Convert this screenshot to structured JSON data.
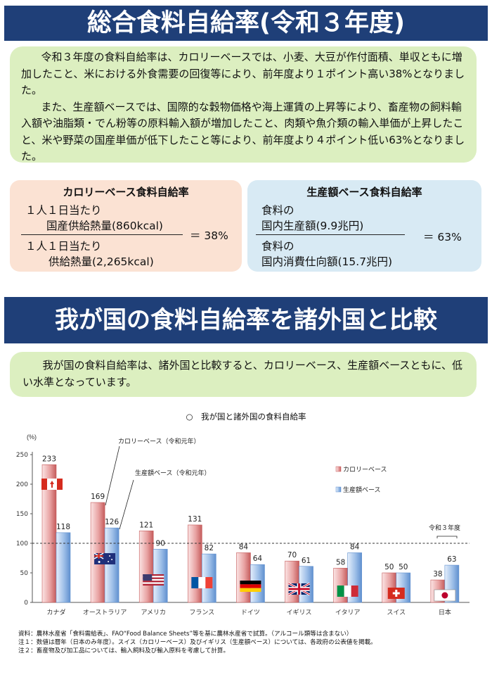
{
  "section1": {
    "title": "総合食料自給率(令和３年度)",
    "paragraphs": [
      "令和３年度の食料自給率は、カロリーベースでは、小麦、大豆が作付面積、単収ともに増加したこと、米における外食需要の回復等により、前年度より１ポイント高い38%となりました。",
      "また、生産額ベースでは、国際的な穀物価格や海上運賃の上昇等により、畜産物の飼料輸入額や油脂類・でん粉等の原料輸入額が増加したこと、肉類や魚介類の輸入単価が上昇したこと、米や野菜の国産単価が低下したこと等により、前年度より４ポイント低い63%となりました。"
    ]
  },
  "formula_calorie": {
    "title": "カロリーベース食料自給率",
    "num_line1": "１人１日当たり",
    "num_line2": "国産供給熱量(860kcal)",
    "den_line1": "１人１日当たり",
    "den_line2": "供給熱量(2,265kcal)",
    "result": "＝ 38%"
  },
  "formula_value": {
    "title": "生産額ベース食料自給率",
    "num_line1": "食料の",
    "num_line2": "国内生産額(9.9兆円)",
    "den_line1": "食料の",
    "den_line2": "国内消費仕向額(15.7兆円)",
    "result": "＝ 63%"
  },
  "section2": {
    "title": "我が国の食料自給率を諸外国と比較",
    "paragraph": "我が国の食料自給率は、諸外国と比較すると、カロリーベース、生産額ベースともに、低い水準となっています。"
  },
  "chart_data": {
    "type": "bar",
    "title": "○　我が国と諸外国の食料自給率",
    "ylabel": "(%)",
    "ylim": [
      0,
      250
    ],
    "yticks": [
      0,
      50,
      100,
      150,
      200,
      250
    ],
    "reference_line": 100,
    "categories": [
      "カナダ",
      "オーストラリア",
      "アメリカ",
      "フランス",
      "ドイツ",
      "イギリス",
      "イタリア",
      "スイス",
      "日本"
    ],
    "series": [
      {
        "name": "カロリーベース",
        "values": [
          233,
          169,
          121,
          131,
          84,
          70,
          58,
          50,
          38
        ],
        "color": "#e59a9a"
      },
      {
        "name": "生産額ベース",
        "values": [
          118,
          126,
          90,
          82,
          64,
          61,
          84,
          50,
          63
        ],
        "color": "#8fb3e2"
      }
    ],
    "annotations": {
      "calorie_callout": "カロリーベース（令和元年）",
      "value_callout": "生産額ベース（令和元年）",
      "japan_year": "令和３年度"
    },
    "flags": [
      "canada",
      "australia",
      "usa",
      "france",
      "germany",
      "uk",
      "italy",
      "switzerland",
      "japan"
    ],
    "legend_position": "top-right"
  },
  "notes": [
    "資料：農林水産省「食料需給表」、FAO“Food Balance Sheets”等を基に農林水産省で試算。（アルコール類等は含まない）",
    "注１：数値は暦年（日本のみ年度）。スイス（カロリーベース）及びイギリス（生産額ベース）については、各政府の公表値を掲載。",
    "注２：畜産物及び加工品については、輸入飼料及び輸入原料を考慮して計算。"
  ]
}
